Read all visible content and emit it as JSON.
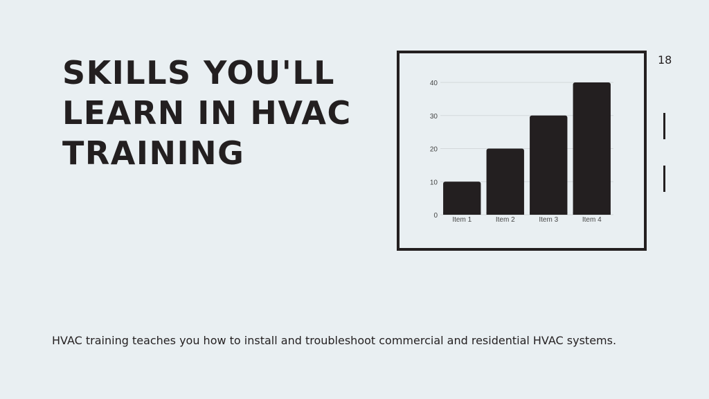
{
  "slide": {
    "title": "SKILLS YOU'LL LEARN IN HVAC TRAINING",
    "page_number": "18",
    "body": "HVAC training teaches you how to install and troubleshoot commercial and residential HVAC systems."
  },
  "chart_data": {
    "type": "bar",
    "categories": [
      "Item 1",
      "Item 2",
      "Item 3",
      "Item 4"
    ],
    "values": [
      10,
      20,
      30,
      40
    ],
    "yticks": [
      "0",
      "10",
      "20",
      "30",
      "40"
    ],
    "ylim": [
      0,
      40
    ],
    "grid": true,
    "bar_color": "#231f20",
    "title": "",
    "xlabel": "",
    "ylabel": ""
  }
}
